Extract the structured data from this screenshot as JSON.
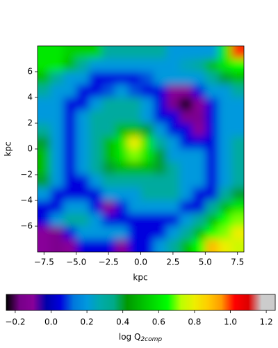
{
  "chart_data": {
    "type": "heatmap",
    "xlabel": "kpc",
    "ylabel": "kpc",
    "xlim": [
      -8,
      8
    ],
    "ylim": [
      -8,
      8
    ],
    "xticks": [
      {
        "value": -7.5,
        "label": "−7.5"
      },
      {
        "value": -5,
        "label": "−5.0"
      },
      {
        "value": -2.5,
        "label": "−2.5"
      },
      {
        "value": 0,
        "label": "0.0"
      },
      2.5,
      {
        "value": 5,
        "label": "5.0"
      },
      7.5
    ],
    "yticks": [
      {
        "value": -6,
        "label": "−6"
      },
      {
        "value": -4,
        "label": "−4"
      },
      {
        "value": -2,
        "label": "−2"
      },
      0,
      2,
      4,
      6
    ],
    "colors": [
      "#000000",
      "#770088",
      "#880099",
      "#0000aa",
      "#0000dd",
      "#0077dd",
      "#0099dd",
      "#00aaaa",
      "#00aa88",
      "#009900",
      "#00bb00",
      "#00dd00",
      "#00ff00",
      "#bbff00",
      "#eeee00",
      "#ffcc00",
      "#ff9900",
      "#ff0000",
      "#dd0000",
      "#cccccc",
      "#cccccc"
    ],
    "colorbar": {
      "label": "log Q",
      "label_sub": "2comp",
      "clim": [
        -0.25,
        1.25
      ],
      "ticks": [
        {
          "value": -0.2,
          "label": "−0.2"
        },
        {
          "value": 0,
          "label": "0.0"
        },
        0.2,
        0.4,
        0.6,
        0.8,
        {
          "value": 1,
          "label": "1.0"
        },
        1.2
      ]
    },
    "z": [
      [
        0.6,
        0.6,
        0.55,
        0.55,
        0.55,
        0.3,
        0.3,
        0.3,
        0.3,
        0.3,
        0.2,
        0.2,
        0.2,
        0.2,
        0.6,
        1.0
      ],
      [
        0.6,
        0.6,
        0.5,
        0.3,
        0.2,
        0.2,
        0.2,
        0.2,
        0.2,
        0.2,
        0.2,
        0.25,
        0.3,
        0.5,
        0.6,
        0.65
      ],
      [
        0.5,
        0.3,
        0.2,
        0.2,
        0.05,
        0.05,
        0.05,
        0.05,
        0.1,
        0.2,
        0.2,
        0.2,
        0.2,
        0.3,
        0.4,
        0.5
      ],
      [
        0.3,
        0.2,
        0.2,
        0.05,
        0.05,
        0.1,
        0.2,
        0.1,
        0.05,
        0.05,
        -0.1,
        -0.1,
        0.05,
        0.2,
        0.2,
        0.3
      ],
      [
        0.2,
        0.2,
        0.05,
        0.05,
        0.2,
        0.3,
        0.3,
        0.3,
        0.2,
        0.05,
        -0.15,
        -0.25,
        -0.1,
        0.05,
        0.2,
        0.2
      ],
      [
        0.2,
        0.2,
        0.05,
        0.2,
        0.3,
        0.3,
        0.3,
        0.3,
        0.2,
        0.05,
        0.05,
        -0.15,
        -0.15,
        0.05,
        0.2,
        0.2
      ],
      [
        0.3,
        0.2,
        0.05,
        0.2,
        0.3,
        0.3,
        0.5,
        0.5,
        0.4,
        0.2,
        0.05,
        0.05,
        -0.1,
        0.05,
        0.2,
        0.2
      ],
      [
        0.4,
        0.2,
        0.05,
        0.2,
        0.3,
        0.5,
        0.6,
        0.8,
        0.6,
        0.3,
        0.2,
        0.05,
        0.05,
        0.05,
        0.2,
        0.3
      ],
      [
        0.5,
        0.2,
        0.05,
        0.2,
        0.3,
        0.5,
        0.6,
        0.7,
        0.6,
        0.4,
        0.2,
        0.2,
        0.2,
        0.05,
        0.2,
        0.3
      ],
      [
        0.5,
        0.2,
        0.05,
        0.2,
        0.3,
        0.4,
        0.5,
        0.5,
        0.5,
        0.4,
        0.3,
        0.2,
        0.2,
        0.05,
        0.2,
        0.3
      ],
      [
        0.4,
        0.2,
        0.05,
        0.05,
        0.2,
        0.3,
        0.3,
        0.3,
        0.3,
        0.3,
        0.3,
        0.2,
        0.2,
        0.05,
        0.2,
        0.3
      ],
      [
        0.2,
        0.05,
        0.05,
        0.05,
        0.05,
        0.2,
        0.2,
        0.2,
        0.3,
        0.3,
        0.3,
        0.2,
        0.05,
        0.05,
        0.3,
        0.4
      ],
      [
        0.05,
        0.05,
        0.2,
        0.2,
        0.05,
        -0.1,
        0.05,
        0.2,
        0.2,
        0.2,
        0.2,
        0.05,
        0.05,
        0.3,
        0.5,
        0.6
      ],
      [
        0.05,
        0.2,
        0.3,
        0.3,
        0.2,
        0.05,
        0.05,
        0.05,
        0.05,
        0.05,
        0.05,
        0.2,
        0.3,
        0.5,
        0.65,
        0.7
      ],
      [
        -0.1,
        -0.15,
        0.05,
        0.2,
        0.2,
        0.2,
        0.2,
        0.05,
        0.05,
        0.05,
        0.2,
        0.3,
        0.5,
        0.65,
        0.7,
        0.8
      ],
      [
        -0.1,
        -0.15,
        -0.1,
        0.05,
        0.05,
        0.05,
        -0.1,
        0.05,
        0.05,
        0.2,
        0.3,
        0.5,
        0.65,
        0.9,
        0.8,
        0.75
      ]
    ]
  }
}
